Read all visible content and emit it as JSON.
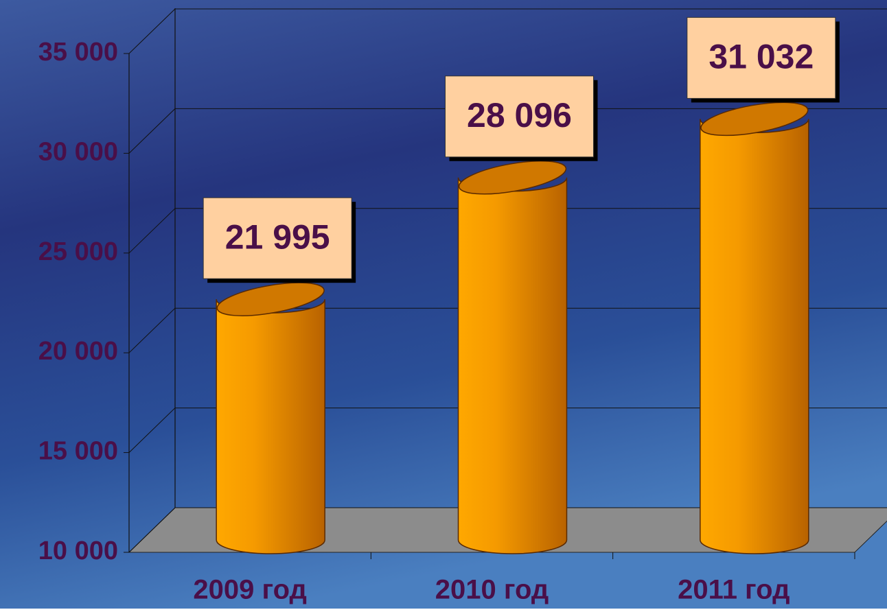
{
  "chart_data": {
    "type": "bar",
    "categories": [
      "2009 год",
      "2010 год",
      "2011 год"
    ],
    "values": [
      21995,
      28096,
      31032
    ],
    "value_labels": [
      "21 995",
      "28 096",
      "31 032"
    ],
    "color": "#f59a00",
    "ylim": [
      10000,
      35000
    ],
    "yticks": [
      {
        "value": 10000,
        "label": "10 000"
      },
      {
        "value": 15000,
        "label": "15 000"
      },
      {
        "value": 20000,
        "label": "20 000"
      },
      {
        "value": 25000,
        "label": "25 000"
      },
      {
        "value": 30000,
        "label": "30 000"
      },
      {
        "value": 35000,
        "label": "35 000"
      }
    ],
    "grid": true
  }
}
